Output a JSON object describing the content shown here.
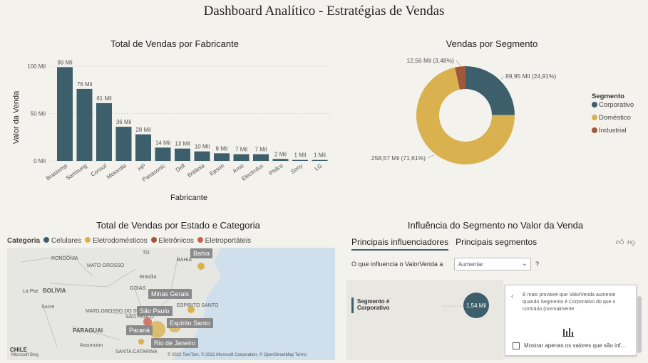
{
  "page": {
    "title": "Dashboard Analítico - Estratégias de Vendas"
  },
  "bar_panel": {
    "title": "Total de Vendas por Fabricante"
  },
  "donut_panel": {
    "title": "Vendas por Segmento"
  },
  "map_panel": {
    "title": "Total de Vendas por Estado e Categoria",
    "legend_title": "Categoria",
    "legend": [
      {
        "label": "Celulares",
        "color": "#3d5f6b"
      },
      {
        "label": "Eletrodomésticos",
        "color": "#d9b14f"
      },
      {
        "label": "Eletrônicos",
        "color": "#a0573a"
      },
      {
        "label": "Eletroportáteis",
        "color": "#d0604d"
      }
    ],
    "region_labels": [
      "RONDÔNIA",
      "MATO GROSSO",
      "BOLÍVIA",
      "La Paz",
      "Sucre",
      "GOIÁS",
      "Brasília",
      "TO",
      "BAHIA",
      "PARAGUAI",
      "Assuncion",
      "SANTA CATARINA",
      "CHILE",
      "MATO GROSSO DO SUL",
      "SÃO PAULO",
      "ESPÍRITO SANTO"
    ],
    "pins": [
      "Bahia",
      "Minas Gerais",
      "São Paulo",
      "Espírito Santo",
      "Paraná",
      "Rio de Janeiro"
    ],
    "attribution": "© 2022 TomTom, © 2022 Microsoft Corporation, © OpenStreetMap  Terms",
    "bing": "Microsoft Bing"
  },
  "influence_panel": {
    "title": "Influência do Segmento no Valor da Venda",
    "tabs": [
      "Principais influenciadores",
      "Principais segmentos"
    ],
    "question": "O que influencia o ValorVenda a",
    "select_value": "Aumentar",
    "qmark": "?",
    "factor_label": "Segmento é Corporativo",
    "bubble_value": "1,54 Mil",
    "tooltip_text": "É mais provável que ValorVenda aumente quando Segmento é Corporativo do que o contrário (normalmente",
    "checkbox_label": "Mostrar apenas os valores que são inf..."
  },
  "chart_data": [
    {
      "type": "bar",
      "title": "Total de Vendas por Fabricante",
      "xlabel": "Fabricante",
      "ylabel": "Valor da Venda",
      "ylim": [
        0,
        100
      ],
      "y_ticks": [
        "0 Mil",
        "50 Mil",
        "100 Mil"
      ],
      "grid": true,
      "color": "#3d5f6b",
      "categories": [
        "Brastemp",
        "Samsung",
        "Consul",
        "Motorola",
        "HP",
        "Panasonic",
        "Dell",
        "Britânia",
        "Epson",
        "Arno",
        "Electrolux",
        "Philco",
        "Sony",
        "LG"
      ],
      "values": [
        99,
        76,
        61,
        36,
        28,
        14,
        13,
        10,
        8,
        7,
        7,
        2,
        1,
        1
      ],
      "data_labels": [
        "99 Mil",
        "76 Mil",
        "61 Mil",
        "36 Mil",
        "28 Mil",
        "14 Mil",
        "13 Mil",
        "10 Mil",
        "8 Mil",
        "7 Mil",
        "7 Mil",
        "2 Mil",
        "1 Mil",
        "1 Mil"
      ]
    },
    {
      "type": "pie",
      "title": "Vendas por Segmento",
      "legend_title": "Segmento",
      "legend_position": "right",
      "slices": [
        {
          "label": "Corporativo",
          "value": 89.95,
          "data_label": "89,95 Mil (24,91%)",
          "color": "#3d5f6b"
        },
        {
          "label": "Doméstico",
          "value": 258.57,
          "data_label": "258,57 Mil (71,61%)",
          "color": "#d9b14f"
        },
        {
          "label": "Industrial",
          "value": 12.56,
          "data_label": "12,56 Mil (3,48%)",
          "color": "#a0573a"
        }
      ]
    }
  ]
}
